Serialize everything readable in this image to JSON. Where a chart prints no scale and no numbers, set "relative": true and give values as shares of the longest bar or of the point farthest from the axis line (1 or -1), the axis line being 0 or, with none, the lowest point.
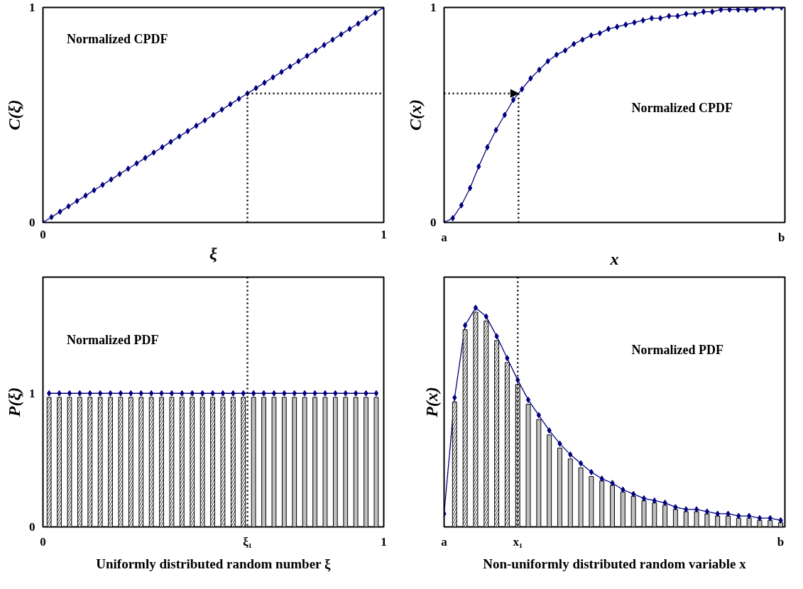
{
  "chart_data": [
    {
      "type": "line",
      "title": "Normalized CPDF",
      "xlabel": "ξ",
      "ylabel": "C(ξ)",
      "xlim": [
        0,
        1
      ],
      "ylim": [
        0,
        1
      ],
      "xticks": [
        0,
        1
      ],
      "yticks": [
        0,
        1
      ],
      "marker": "diamond",
      "line_style": "solid",
      "x": [
        0,
        0.025,
        0.05,
        0.075,
        0.1,
        0.125,
        0.15,
        0.175,
        0.2,
        0.225,
        0.25,
        0.275,
        0.3,
        0.325,
        0.35,
        0.375,
        0.4,
        0.425,
        0.45,
        0.475,
        0.5,
        0.525,
        0.55,
        0.575,
        0.6,
        0.625,
        0.65,
        0.675,
        0.7,
        0.725,
        0.75,
        0.775,
        0.8,
        0.825,
        0.85,
        0.875,
        0.9,
        0.925,
        0.95,
        0.975,
        1
      ],
      "series": [
        {
          "color": "#000080",
          "values": [
            0,
            0.025,
            0.05,
            0.075,
            0.1,
            0.125,
            0.15,
            0.175,
            0.2,
            0.225,
            0.25,
            0.275,
            0.3,
            0.325,
            0.35,
            0.375,
            0.4,
            0.425,
            0.45,
            0.475,
            0.5,
            0.525,
            0.55,
            0.575,
            0.6,
            0.625,
            0.65,
            0.675,
            0.7,
            0.725,
            0.75,
            0.775,
            0.8,
            0.825,
            0.85,
            0.875,
            0.9,
            0.925,
            0.95,
            0.975,
            1
          ]
        }
      ],
      "ref_lines": [
        {
          "axis": "x",
          "value": 0.6,
          "line_style": "dotted",
          "color": "#000000"
        },
        {
          "axis": "y",
          "value": 0.6,
          "line_style": "dotted",
          "color": "#000000"
        }
      ]
    },
    {
      "type": "line",
      "title": "Normalized CPDF",
      "xlabel": "x",
      "ylabel": "C(x)",
      "ylim": [
        0,
        1
      ],
      "yticks": [
        0,
        1
      ],
      "marker": "diamond",
      "line_style": "solid",
      "categories": [
        "a",
        null,
        null,
        null,
        null,
        null,
        null,
        null,
        null,
        null,
        null,
        null,
        null,
        null,
        null,
        null,
        null,
        null,
        null,
        null,
        null,
        null,
        null,
        null,
        null,
        null,
        null,
        null,
        null,
        null,
        null,
        null,
        null,
        null,
        null,
        null,
        null,
        null,
        null,
        "b"
      ],
      "series": [
        {
          "color": "#000080",
          "values": [
            0,
            0.02,
            0.08,
            0.16,
            0.26,
            0.35,
            0.43,
            0.5,
            0.57,
            0.62,
            0.67,
            0.71,
            0.75,
            0.78,
            0.8,
            0.83,
            0.85,
            0.87,
            0.88,
            0.9,
            0.91,
            0.92,
            0.93,
            0.94,
            0.95,
            0.95,
            0.96,
            0.96,
            0.97,
            0.97,
            0.98,
            0.98,
            0.99,
            0.99,
            0.99,
            0.99,
            0.99,
            1,
            1,
            1
          ]
        }
      ],
      "ref_lines": [
        {
          "axis": "y",
          "value": 0.6,
          "line_style": "dotted",
          "color": "#000000"
        }
      ]
    },
    {
      "type": "bar",
      "title": "Normalized PDF",
      "ylabel": "P(ξ)",
      "xlim": [
        0,
        1
      ],
      "ylim": [
        0,
        1.87
      ],
      "xticks": [
        0,
        {
          "value": 0.6,
          "label": "ξ₁"
        },
        1
      ],
      "yticks": [
        0,
        1
      ],
      "marker": "diamond",
      "line_style": "solid",
      "series": [
        {
          "type": "bar",
          "color": "#ffffff",
          "x": [
            0.018,
            0.048,
            0.078,
            0.108,
            0.138,
            0.168,
            0.198,
            0.228,
            0.258,
            0.288,
            0.318,
            0.348,
            0.378,
            0.408,
            0.438,
            0.468,
            0.498,
            0.528,
            0.558,
            0.588
          ],
          "values": [
            0.97,
            0.97,
            0.97,
            0.97,
            0.97,
            0.97,
            0.97,
            0.97,
            0.97,
            0.97,
            0.97,
            0.97,
            0.97,
            0.97,
            0.97,
            0.97,
            0.97,
            0.97,
            0.97,
            0.97
          ]
        },
        {
          "type": "bar",
          "color": "#c0c0c0",
          "x": [
            0.618,
            0.648,
            0.678,
            0.708,
            0.738,
            0.768,
            0.798,
            0.828,
            0.858,
            0.888,
            0.918,
            0.948,
            0.978
          ],
          "values": [
            0.97,
            0.97,
            0.97,
            0.97,
            0.97,
            0.97,
            0.97,
            0.97,
            0.97,
            0.97,
            0.97,
            0.97,
            0.97
          ]
        },
        {
          "type": "line",
          "color": "#000080",
          "x": [
            0.018,
            0.048,
            0.078,
            0.108,
            0.138,
            0.168,
            0.198,
            0.228,
            0.258,
            0.288,
            0.318,
            0.348,
            0.378,
            0.408,
            0.438,
            0.468,
            0.498,
            0.528,
            0.558,
            0.588,
            0.618,
            0.648,
            0.678,
            0.708,
            0.738,
            0.768,
            0.798,
            0.828,
            0.858,
            0.888,
            0.918,
            0.948,
            0.978
          ],
          "values": [
            1,
            1,
            1,
            1,
            1,
            1,
            1,
            1,
            1,
            1,
            1,
            1,
            1,
            1,
            1,
            1,
            1,
            1,
            1,
            1,
            1,
            1,
            1,
            1,
            1,
            1,
            1,
            1,
            1,
            1,
            1,
            1,
            1
          ]
        }
      ],
      "ref_lines": [
        {
          "axis": "x",
          "value": 0.6,
          "line_style": "dotted",
          "color": "#000000"
        }
      ],
      "annotations": [
        "Uniformly distributed random number ξ"
      ]
    },
    {
      "type": "bar",
      "relative": true,
      "title": "Normalized PDF",
      "ylabel": "P(x)",
      "marker": "diamond",
      "line_style": "solid",
      "categories": [
        "a",
        null,
        null,
        null,
        null,
        null,
        null,
        "x₁",
        null,
        null,
        null,
        null,
        null,
        null,
        null,
        null,
        null,
        null,
        null,
        null,
        null,
        null,
        null,
        null,
        null,
        null,
        null,
        null,
        null,
        null,
        null,
        null,
        "b"
      ],
      "series": [
        {
          "type": "bar",
          "color": "#ffffff",
          "values": [
            null,
            0.57,
            0.9,
            0.98,
            0.94,
            0.85,
            0.75,
            0.65,
            null,
            null,
            null,
            null,
            null,
            null,
            null,
            null,
            null,
            null,
            null,
            null,
            null,
            null,
            null,
            null,
            null,
            null,
            null,
            null,
            null,
            null,
            null,
            null,
            null
          ]
        },
        {
          "type": "bar",
          "color": "#c0c0c0",
          "values": [
            null,
            null,
            null,
            null,
            null,
            null,
            null,
            null,
            0.56,
            0.49,
            0.42,
            0.36,
            0.31,
            0.27,
            0.23,
            0.21,
            0.19,
            0.16,
            0.14,
            0.12,
            0.11,
            0.1,
            0.08,
            0.07,
            0.07,
            0.06,
            0.05,
            0.05,
            0.04,
            0.04,
            0.03,
            0.03,
            0.02
          ]
        },
        {
          "type": "line",
          "color": "#000080",
          "values": [
            0.06,
            0.59,
            0.92,
            1,
            0.96,
            0.87,
            0.77,
            0.67,
            0.58,
            0.51,
            0.44,
            0.38,
            0.33,
            0.29,
            0.25,
            0.22,
            0.2,
            0.17,
            0.15,
            0.13,
            0.12,
            0.11,
            0.09,
            0.08,
            0.08,
            0.07,
            0.06,
            0.06,
            0.05,
            0.05,
            0.04,
            0.04,
            0.03
          ]
        }
      ],
      "ref_lines": [
        {
          "axis": "x",
          "value": "x₁",
          "line_style": "dotted",
          "color": "#000000"
        }
      ],
      "annotations": [
        "Non-uniformly distributed random variable x"
      ]
    }
  ]
}
